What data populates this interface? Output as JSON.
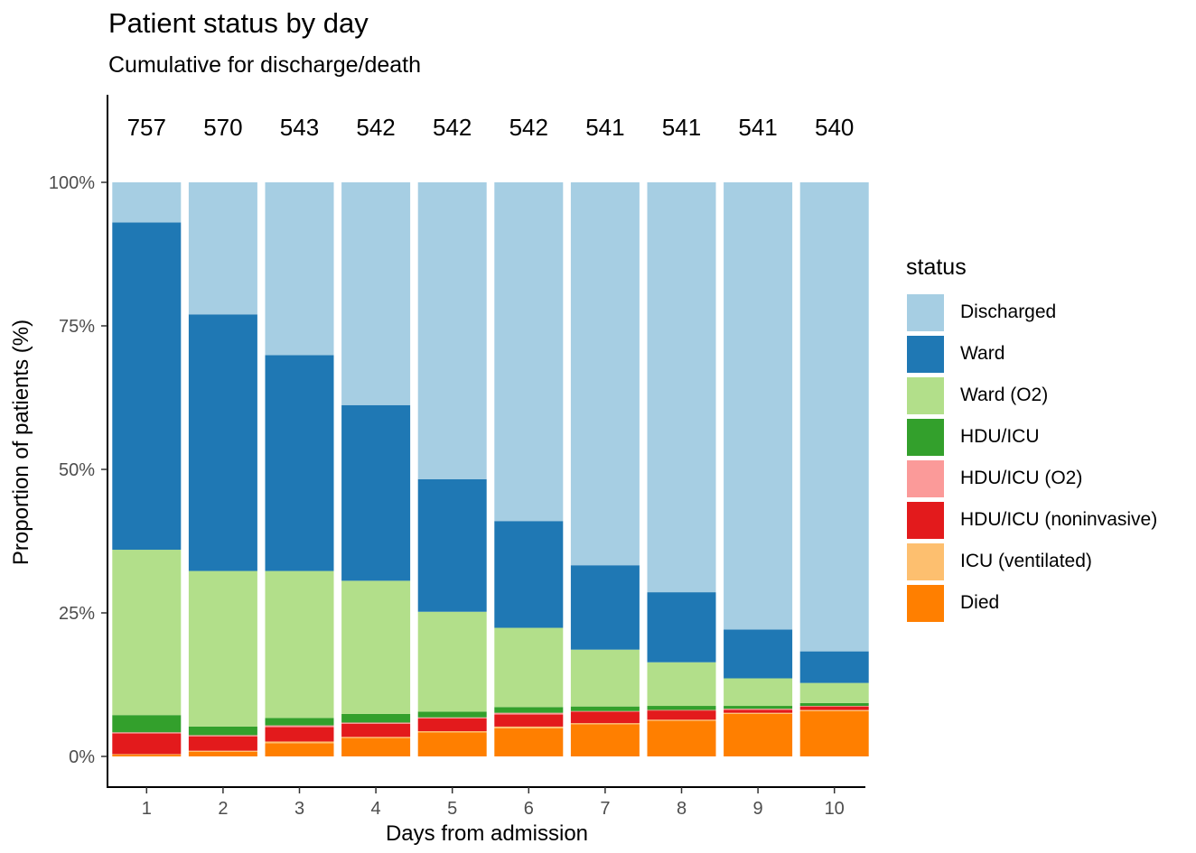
{
  "chart_data": {
    "type": "bar",
    "stacked": true,
    "title": "Patient status by day",
    "subtitle": "Cumulative for discharge/death",
    "xlabel": "Days from admission",
    "ylabel": "Proportion of patients (%)",
    "ylim": [
      0,
      1
    ],
    "yticks": [
      "0%",
      "25%",
      "50%",
      "75%",
      "100%"
    ],
    "ytick_values": [
      0,
      0.25,
      0.5,
      0.75,
      1.0
    ],
    "categories": [
      "1",
      "2",
      "3",
      "4",
      "5",
      "6",
      "7",
      "8",
      "9",
      "10"
    ],
    "counts": [
      "757",
      "570",
      "543",
      "542",
      "542",
      "542",
      "541",
      "541",
      "541",
      "540"
    ],
    "grid": false,
    "legend_title": "status",
    "legend_position": "right",
    "series": [
      {
        "name": "Died",
        "color": "#FF7F00",
        "values": [
          0.003,
          0.008,
          0.023,
          0.032,
          0.042,
          0.049,
          0.056,
          0.062,
          0.074,
          0.079
        ]
      },
      {
        "name": "ICU (ventilated)",
        "color": "#FDBF6F",
        "values": [
          0.001,
          0.002,
          0.003,
          0.002,
          0.002,
          0.003,
          0.002,
          0.002,
          0.002,
          0.002
        ]
      },
      {
        "name": "HDU/ICU (noninvasive)",
        "color": "#E31A1C",
        "values": [
          0.036,
          0.025,
          0.025,
          0.023,
          0.022,
          0.021,
          0.02,
          0.016,
          0.005,
          0.006
        ]
      },
      {
        "name": "HDU/ICU (O2)",
        "color": "#FB9A99",
        "values": [
          0.002,
          0.002,
          0.003,
          0.002,
          0.002,
          0.003,
          0.001,
          0.001,
          0.002,
          0.001
        ]
      },
      {
        "name": "HDU/ICU",
        "color": "#33A02C",
        "values": [
          0.03,
          0.015,
          0.013,
          0.015,
          0.01,
          0.01,
          0.008,
          0.007,
          0.005,
          0.005
        ]
      },
      {
        "name": "Ward (O2)",
        "color": "#B2DF8A",
        "values": [
          0.288,
          0.271,
          0.256,
          0.232,
          0.174,
          0.138,
          0.099,
          0.076,
          0.048,
          0.035
        ]
      },
      {
        "name": "Ward",
        "color": "#1F78B4",
        "values": [
          0.57,
          0.447,
          0.376,
          0.306,
          0.231,
          0.186,
          0.147,
          0.122,
          0.085,
          0.055
        ]
      },
      {
        "name": "Discharged",
        "color": "#A6CEE3",
        "values": [
          0.07,
          0.23,
          0.301,
          0.388,
          0.517,
          0.59,
          0.667,
          0.714,
          0.779,
          0.817
        ]
      }
    ]
  }
}
